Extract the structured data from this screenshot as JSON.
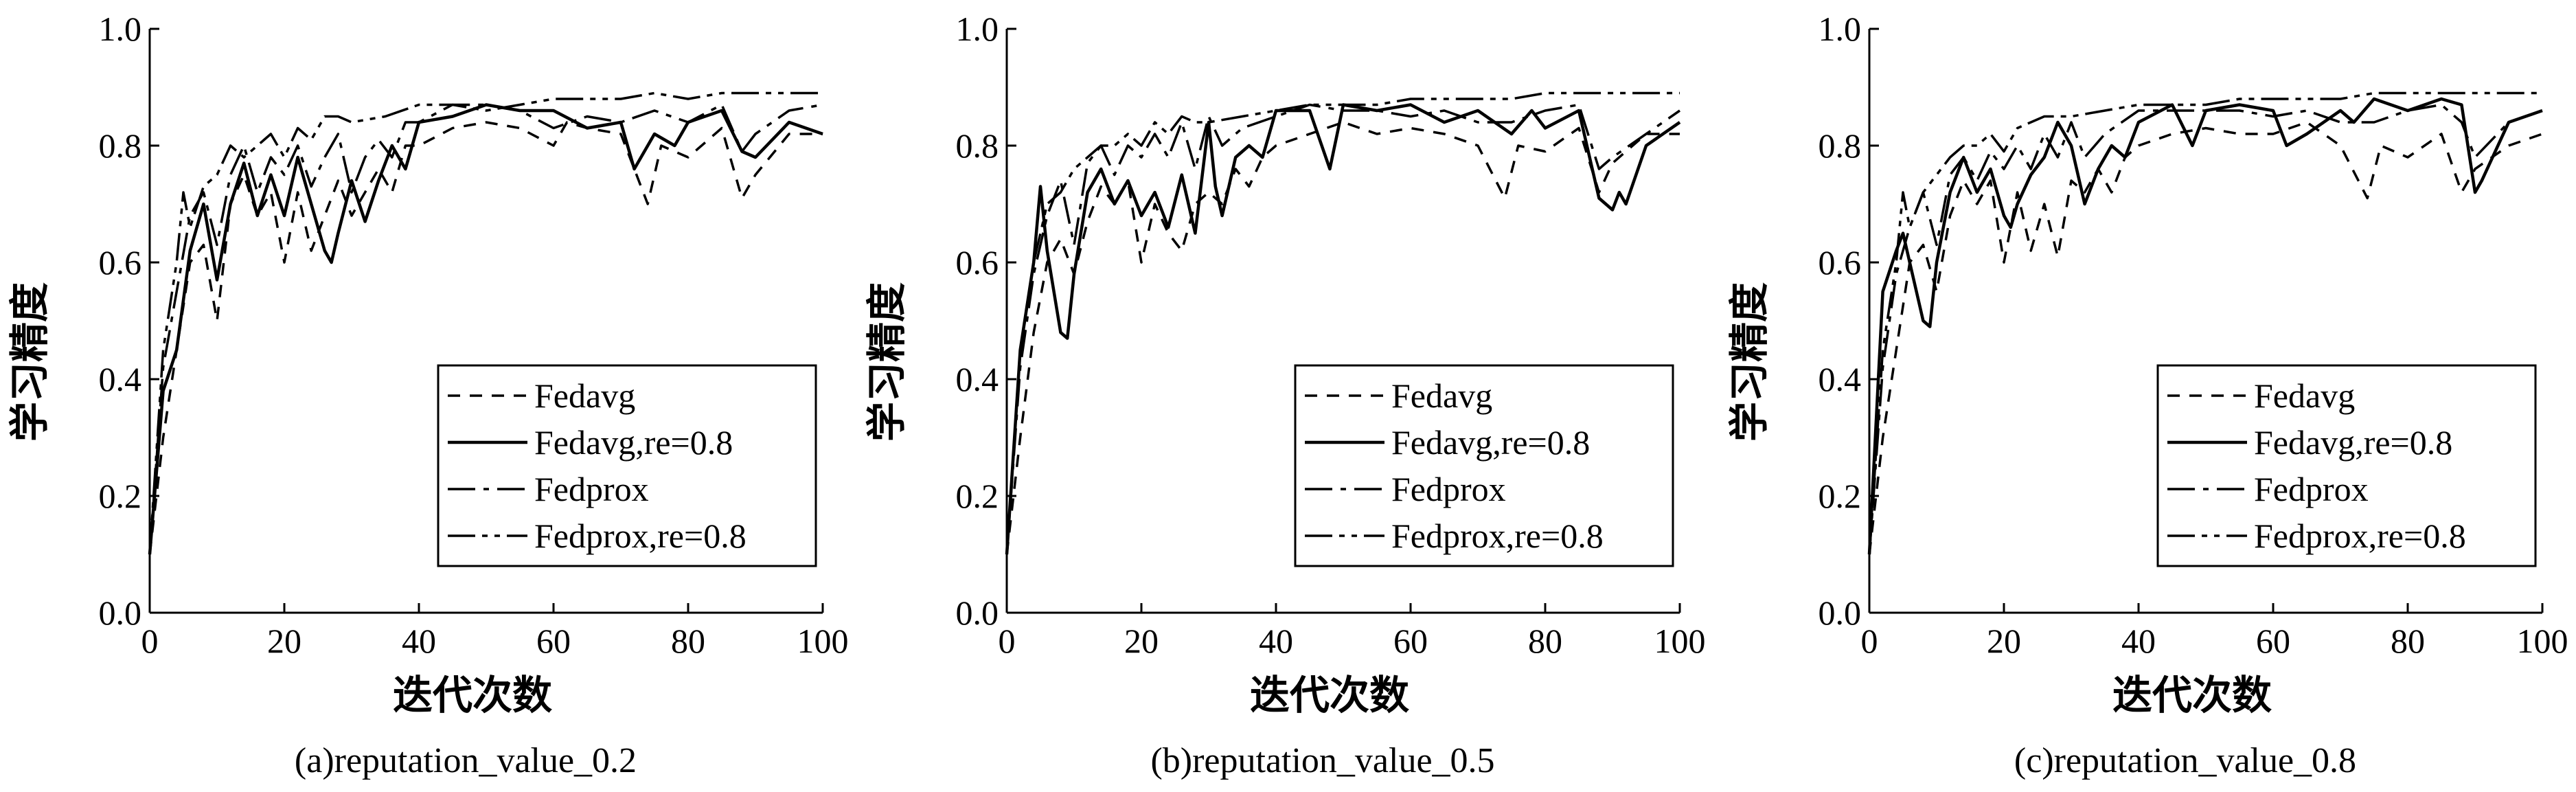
{
  "chart_data": [
    {
      "type": "line",
      "caption": "(a)reputation_value_0.2",
      "xlabel": "迭代次数",
      "ylabel": "学习精度",
      "xlim": [
        0,
        100
      ],
      "ylim": [
        0.0,
        1.0
      ],
      "xticks": [
        "0",
        "20",
        "40",
        "60",
        "80",
        "100"
      ],
      "yticks": [
        "0.0",
        "0.2",
        "0.4",
        "0.6",
        "0.8",
        "1.0"
      ],
      "grid": false,
      "legend_position": "bottom-right",
      "series": [
        {
          "name": "Fedavg",
          "x": [
            0,
            2,
            4,
            6,
            8,
            10,
            12,
            14,
            16,
            18,
            20,
            22,
            24,
            26,
            28,
            30,
            32,
            34,
            36,
            38,
            40,
            45,
            50,
            55,
            60,
            62,
            65,
            70,
            74,
            76,
            80,
            85,
            88,
            90,
            95,
            100
          ],
          "y": [
            0.1,
            0.3,
            0.45,
            0.6,
            0.63,
            0.5,
            0.7,
            0.75,
            0.68,
            0.72,
            0.6,
            0.72,
            0.62,
            0.68,
            0.74,
            0.68,
            0.72,
            0.76,
            0.72,
            0.8,
            0.8,
            0.83,
            0.84,
            0.83,
            0.8,
            0.84,
            0.83,
            0.82,
            0.7,
            0.8,
            0.78,
            0.83,
            0.71,
            0.75,
            0.82,
            0.82
          ]
        },
        {
          "name": "Fedavg,re=0.8",
          "x": [
            0,
            2,
            4,
            6,
            8,
            10,
            12,
            14,
            16,
            18,
            20,
            22,
            24,
            26,
            27,
            28,
            30,
            32,
            34,
            36,
            38,
            40,
            45,
            50,
            55,
            60,
            65,
            70,
            72,
            75,
            78,
            80,
            85,
            88,
            90,
            95,
            100
          ],
          "y": [
            0.1,
            0.38,
            0.45,
            0.62,
            0.7,
            0.57,
            0.7,
            0.77,
            0.68,
            0.75,
            0.68,
            0.78,
            0.7,
            0.62,
            0.6,
            0.65,
            0.74,
            0.67,
            0.74,
            0.8,
            0.76,
            0.84,
            0.85,
            0.87,
            0.86,
            0.86,
            0.83,
            0.84,
            0.76,
            0.82,
            0.8,
            0.84,
            0.86,
            0.79,
            0.78,
            0.84,
            0.82
          ]
        },
        {
          "name": "Fedprox",
          "x": [
            0,
            2,
            4,
            6,
            8,
            10,
            12,
            14,
            16,
            18,
            20,
            22,
            24,
            26,
            28,
            30,
            32,
            34,
            36,
            38,
            40,
            45,
            50,
            55,
            60,
            65,
            70,
            75,
            80,
            85,
            88,
            90,
            95,
            100
          ],
          "y": [
            0.1,
            0.42,
            0.55,
            0.68,
            0.72,
            0.63,
            0.75,
            0.8,
            0.72,
            0.78,
            0.75,
            0.8,
            0.73,
            0.78,
            0.82,
            0.72,
            0.78,
            0.81,
            0.78,
            0.84,
            0.84,
            0.87,
            0.87,
            0.86,
            0.83,
            0.85,
            0.84,
            0.86,
            0.84,
            0.87,
            0.79,
            0.82,
            0.86,
            0.87
          ]
        },
        {
          "name": "Fedprox,re=0.8",
          "x": [
            0,
            2,
            4,
            5,
            6,
            8,
            10,
            12,
            14,
            16,
            18,
            20,
            22,
            24,
            26,
            28,
            30,
            35,
            40,
            45,
            50,
            55,
            60,
            65,
            70,
            75,
            80,
            85,
            90,
            95,
            100
          ],
          "y": [
            0.1,
            0.45,
            0.6,
            0.72,
            0.66,
            0.73,
            0.75,
            0.8,
            0.78,
            0.8,
            0.82,
            0.78,
            0.83,
            0.81,
            0.85,
            0.85,
            0.84,
            0.85,
            0.87,
            0.87,
            0.86,
            0.87,
            0.88,
            0.88,
            0.88,
            0.89,
            0.88,
            0.89,
            0.89,
            0.89,
            0.89
          ]
        }
      ]
    },
    {
      "type": "line",
      "caption": "(b)reputation_value_0.5",
      "xlabel": "迭代次数",
      "ylabel": "学习精度",
      "xlim": [
        0,
        100
      ],
      "ylim": [
        0.0,
        1.0
      ],
      "xticks": [
        "0",
        "20",
        "40",
        "60",
        "80",
        "100"
      ],
      "yticks": [
        "0.0",
        "0.2",
        "0.4",
        "0.6",
        "0.8",
        "1.0"
      ],
      "grid": false,
      "legend_position": "bottom-right",
      "series": [
        {
          "name": "Fedavg",
          "x": [
            0,
            2,
            4,
            6,
            8,
            10,
            12,
            14,
            16,
            18,
            20,
            22,
            24,
            26,
            28,
            30,
            32,
            34,
            36,
            38,
            40,
            45,
            50,
            55,
            60,
            65,
            70,
            74,
            76,
            80,
            85,
            88,
            90,
            95,
            100
          ],
          "y": [
            0.1,
            0.3,
            0.48,
            0.6,
            0.64,
            0.58,
            0.67,
            0.73,
            0.7,
            0.74,
            0.6,
            0.7,
            0.65,
            0.62,
            0.7,
            0.72,
            0.7,
            0.76,
            0.73,
            0.78,
            0.8,
            0.82,
            0.84,
            0.82,
            0.83,
            0.82,
            0.8,
            0.71,
            0.8,
            0.79,
            0.83,
            0.72,
            0.77,
            0.82,
            0.82
          ]
        },
        {
          "name": "Fedavg,re=0.8",
          "x": [
            0,
            2,
            4,
            5,
            6,
            8,
            9,
            10,
            12,
            14,
            16,
            18,
            20,
            22,
            24,
            26,
            28,
            30,
            31,
            32,
            34,
            36,
            38,
            40,
            45,
            48,
            50,
            55,
            60,
            65,
            70,
            75,
            78,
            80,
            85,
            88,
            90,
            91,
            92,
            95,
            100
          ],
          "y": [
            0.1,
            0.45,
            0.6,
            0.73,
            0.62,
            0.48,
            0.47,
            0.58,
            0.72,
            0.76,
            0.7,
            0.74,
            0.68,
            0.72,
            0.66,
            0.75,
            0.65,
            0.84,
            0.73,
            0.68,
            0.78,
            0.8,
            0.78,
            0.86,
            0.86,
            0.76,
            0.87,
            0.86,
            0.87,
            0.84,
            0.86,
            0.82,
            0.86,
            0.83,
            0.86,
            0.71,
            0.69,
            0.72,
            0.7,
            0.8,
            0.84
          ]
        },
        {
          "name": "Fedprox",
          "x": [
            0,
            2,
            4,
            6,
            8,
            10,
            12,
            14,
            16,
            18,
            20,
            22,
            24,
            26,
            28,
            30,
            32,
            35,
            40,
            45,
            50,
            55,
            60,
            65,
            70,
            75,
            80,
            85,
            88,
            90,
            95,
            100
          ],
          "y": [
            0.1,
            0.42,
            0.58,
            0.68,
            0.74,
            0.63,
            0.77,
            0.8,
            0.75,
            0.8,
            0.78,
            0.82,
            0.78,
            0.84,
            0.76,
            0.85,
            0.8,
            0.83,
            0.85,
            0.87,
            0.86,
            0.86,
            0.85,
            0.86,
            0.84,
            0.84,
            0.86,
            0.87,
            0.76,
            0.78,
            0.82,
            0.86
          ]
        },
        {
          "name": "Fedprox,re=0.8",
          "x": [
            0,
            2,
            4,
            6,
            8,
            10,
            12,
            14,
            16,
            18,
            20,
            22,
            24,
            26,
            28,
            30,
            35,
            40,
            45,
            50,
            55,
            60,
            65,
            70,
            75,
            80,
            85,
            90,
            95,
            100
          ],
          "y": [
            0.1,
            0.45,
            0.6,
            0.7,
            0.72,
            0.76,
            0.78,
            0.8,
            0.8,
            0.82,
            0.8,
            0.84,
            0.82,
            0.85,
            0.84,
            0.84,
            0.85,
            0.86,
            0.87,
            0.87,
            0.87,
            0.88,
            0.88,
            0.88,
            0.88,
            0.89,
            0.89,
            0.89,
            0.89,
            0.89
          ]
        }
      ]
    },
    {
      "type": "line",
      "caption": "(c)reputation_value_0.8",
      "xlabel": "迭代次数",
      "ylabel": "学习精度",
      "xlim": [
        0,
        100
      ],
      "ylim": [
        0.0,
        1.0
      ],
      "xticks": [
        "0",
        "20",
        "40",
        "60",
        "80",
        "100"
      ],
      "yticks": [
        "0.0",
        "0.2",
        "0.4",
        "0.6",
        "0.8",
        "1.0"
      ],
      "grid": false,
      "legend_position": "bottom-right",
      "series": [
        {
          "name": "Fedavg",
          "x": [
            0,
            2,
            4,
            6,
            8,
            10,
            12,
            14,
            16,
            18,
            20,
            22,
            24,
            26,
            28,
            30,
            32,
            34,
            36,
            38,
            40,
            45,
            50,
            55,
            60,
            65,
            70,
            74,
            76,
            80,
            85,
            88,
            90,
            95,
            100
          ],
          "y": [
            0.1,
            0.3,
            0.45,
            0.6,
            0.63,
            0.55,
            0.68,
            0.74,
            0.7,
            0.74,
            0.6,
            0.72,
            0.62,
            0.7,
            0.61,
            0.74,
            0.72,
            0.76,
            0.72,
            0.78,
            0.8,
            0.82,
            0.83,
            0.82,
            0.82,
            0.84,
            0.8,
            0.71,
            0.8,
            0.78,
            0.82,
            0.72,
            0.76,
            0.8,
            0.82
          ]
        },
        {
          "name": "Fedavg,re=0.8",
          "x": [
            0,
            2,
            4,
            5,
            6,
            8,
            9,
            10,
            12,
            14,
            16,
            18,
            20,
            21,
            22,
            24,
            26,
            28,
            30,
            32,
            34,
            36,
            38,
            40,
            45,
            48,
            50,
            55,
            60,
            62,
            65,
            70,
            72,
            75,
            80,
            85,
            88,
            90,
            91,
            95,
            100
          ],
          "y": [
            0.1,
            0.55,
            0.62,
            0.65,
            0.6,
            0.5,
            0.49,
            0.6,
            0.72,
            0.78,
            0.72,
            0.76,
            0.68,
            0.66,
            0.7,
            0.75,
            0.78,
            0.84,
            0.8,
            0.7,
            0.76,
            0.8,
            0.78,
            0.84,
            0.87,
            0.8,
            0.86,
            0.87,
            0.86,
            0.8,
            0.82,
            0.86,
            0.84,
            0.88,
            0.86,
            0.88,
            0.87,
            0.72,
            0.74,
            0.84,
            0.86
          ]
        },
        {
          "name": "Fedprox",
          "x": [
            0,
            2,
            4,
            6,
            8,
            10,
            12,
            14,
            16,
            18,
            20,
            22,
            24,
            26,
            28,
            30,
            32,
            35,
            40,
            45,
            50,
            55,
            60,
            65,
            70,
            75,
            80,
            85,
            88,
            90,
            95,
            100
          ],
          "y": [
            0.1,
            0.42,
            0.58,
            0.66,
            0.72,
            0.63,
            0.75,
            0.78,
            0.74,
            0.79,
            0.76,
            0.8,
            0.76,
            0.82,
            0.78,
            0.84,
            0.78,
            0.82,
            0.86,
            0.86,
            0.86,
            0.86,
            0.85,
            0.86,
            0.84,
            0.84,
            0.86,
            0.87,
            0.84,
            0.78,
            0.84,
            0.86
          ]
        },
        {
          "name": "Fedprox,re=0.8",
          "x": [
            0,
            2,
            4,
            5,
            6,
            8,
            10,
            12,
            14,
            16,
            18,
            20,
            22,
            24,
            26,
            28,
            30,
            35,
            40,
            45,
            50,
            55,
            60,
            65,
            70,
            75,
            80,
            85,
            90,
            95,
            100
          ],
          "y": [
            0.1,
            0.45,
            0.6,
            0.72,
            0.66,
            0.72,
            0.75,
            0.78,
            0.8,
            0.8,
            0.82,
            0.79,
            0.83,
            0.84,
            0.85,
            0.85,
            0.85,
            0.86,
            0.87,
            0.87,
            0.87,
            0.88,
            0.88,
            0.88,
            0.88,
            0.89,
            0.89,
            0.89,
            0.89,
            0.89,
            0.89
          ]
        }
      ]
    }
  ]
}
